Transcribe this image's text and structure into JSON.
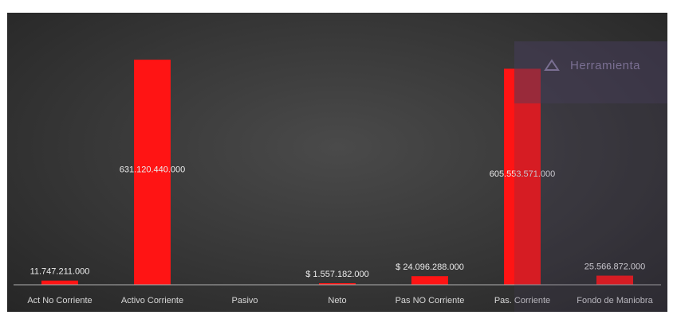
{
  "chart_data": {
    "type": "bar",
    "categories": [
      "Act No Corriente",
      "Activo Corriente",
      "Pasivo",
      "Neto",
      "Pas NO Corriente",
      "Pas. Corriente",
      "Fondo de Maniobra"
    ],
    "values": [
      11747211000,
      631120440000,
      0,
      1557182000,
      24096288000,
      605553571000,
      25566872000
    ],
    "data_labels": [
      "11.747.211.000",
      "631.120.440.000",
      "",
      "$ 1.557.182.000",
      "$ 24.096.288.000",
      "605.553.571.000",
      "25.566.872.000"
    ],
    "ylim": [
      0,
      660000000000
    ],
    "grid": false,
    "bar_color": "#ff1414"
  },
  "watermark": {
    "text": "Herramienta"
  }
}
